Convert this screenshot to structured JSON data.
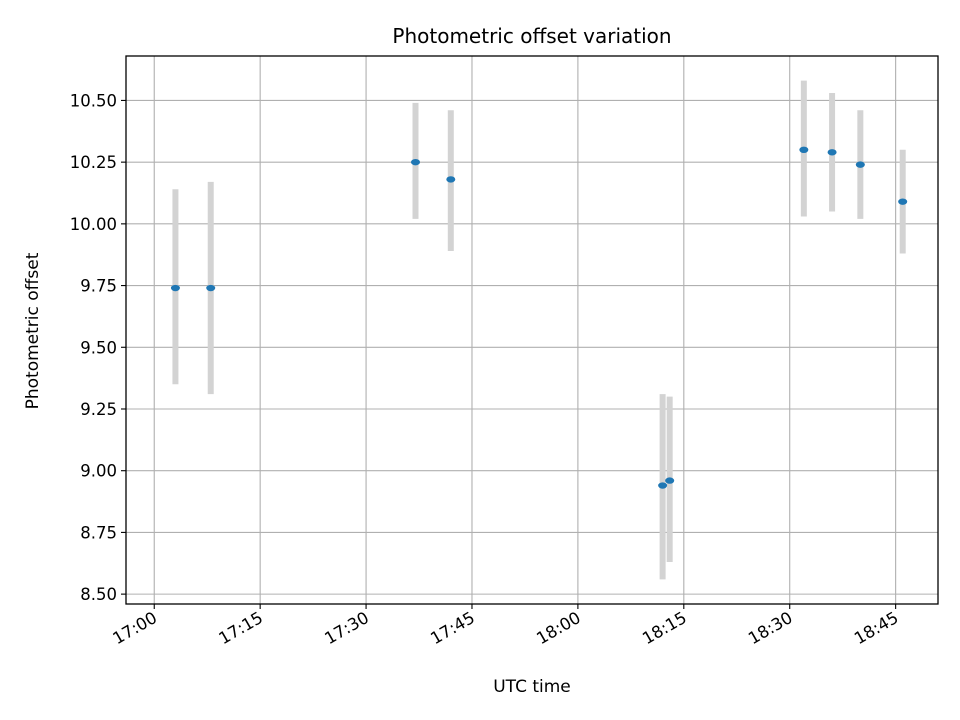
{
  "chart_data": {
    "type": "scatter",
    "title": "Photometric offset variation",
    "xlabel": "UTC time",
    "ylabel": "Photometric offset",
    "x_unit": "time of day (UTC)",
    "xlim": [
      "16:56",
      "18:51"
    ],
    "ylim": [
      8.46,
      10.68
    ],
    "x_ticks": [
      "17:00",
      "17:15",
      "17:30",
      "17:45",
      "18:00",
      "18:15",
      "18:30",
      "18:45"
    ],
    "y_ticks": [
      "8.50",
      "8.75",
      "9.00",
      "9.25",
      "9.50",
      "9.75",
      "10.00",
      "10.25",
      "10.50"
    ],
    "grid": true,
    "colors": {
      "point": "#1f77b4",
      "errorbar": "#d3d3d3",
      "grid": "#b0b0b0"
    },
    "series": [
      {
        "points": [
          {
            "time": "17:03",
            "y": 9.74,
            "yerr_low": 9.35,
            "yerr_high": 10.14
          },
          {
            "time": "17:08",
            "y": 9.74,
            "yerr_low": 9.31,
            "yerr_high": 10.17
          },
          {
            "time": "17:37",
            "y": 10.25,
            "yerr_low": 10.02,
            "yerr_high": 10.49
          },
          {
            "time": "17:42",
            "y": 10.18,
            "yerr_low": 9.89,
            "yerr_high": 10.46
          },
          {
            "time": "18:12",
            "y": 8.94,
            "yerr_low": 8.56,
            "yerr_high": 9.31
          },
          {
            "time": "18:13",
            "y": 8.96,
            "yerr_low": 8.63,
            "yerr_high": 9.3
          },
          {
            "time": "18:32",
            "y": 10.3,
            "yerr_low": 10.03,
            "yerr_high": 10.58
          },
          {
            "time": "18:36",
            "y": 10.29,
            "yerr_low": 10.05,
            "yerr_high": 10.53
          },
          {
            "time": "18:40",
            "y": 10.24,
            "yerr_low": 10.02,
            "yerr_high": 10.46
          },
          {
            "time": "18:46",
            "y": 10.09,
            "yerr_low": 9.88,
            "yerr_high": 10.3
          }
        ]
      }
    ]
  }
}
